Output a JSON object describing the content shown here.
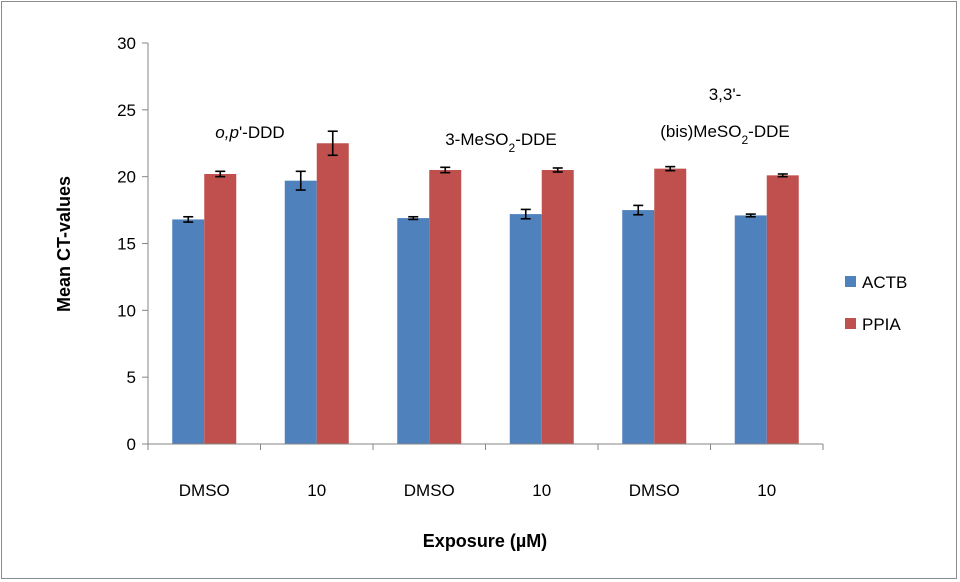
{
  "chart_data": {
    "type": "bar",
    "title": "",
    "xlabel": "Exposure (µM)",
    "ylabel": "Mean CT-values",
    "ylim": [
      0,
      30
    ],
    "yticks": [
      "0",
      "5",
      "10",
      "15",
      "20",
      "25",
      "30"
    ],
    "grid": false,
    "legend_position": "right",
    "categories": [
      "DMSO",
      "10",
      "DMSO",
      "10",
      "DMSO",
      "10"
    ],
    "series": [
      {
        "name": "ACTB",
        "color": "#4f81bd",
        "values": [
          16.8,
          19.7,
          16.9,
          17.2,
          17.5,
          17.1
        ],
        "errors": [
          0.2,
          0.7,
          0.1,
          0.35,
          0.35,
          0.1
        ]
      },
      {
        "name": "PPIA",
        "color": "#c0504d",
        "values": [
          20.2,
          22.5,
          20.5,
          20.5,
          20.6,
          20.1
        ],
        "errors": [
          0.2,
          0.9,
          0.2,
          0.15,
          0.15,
          0.1
        ]
      }
    ],
    "annotations": [
      {
        "parts": [
          {
            "text": "o,p",
            "style": "italic"
          },
          {
            "text": "'-DDD"
          }
        ]
      },
      {
        "parts": [
          {
            "text": "3-MeSO"
          },
          {
            "text": "2",
            "style": "sub"
          },
          {
            "text": "-DDE"
          }
        ]
      },
      {
        "parts": [
          {
            "text": "3,3'-"
          }
        ]
      },
      {
        "parts": [
          {
            "text": "(bis)MeSO"
          },
          {
            "text": "2",
            "style": "sub"
          },
          {
            "text": "-DDE"
          }
        ]
      }
    ]
  }
}
